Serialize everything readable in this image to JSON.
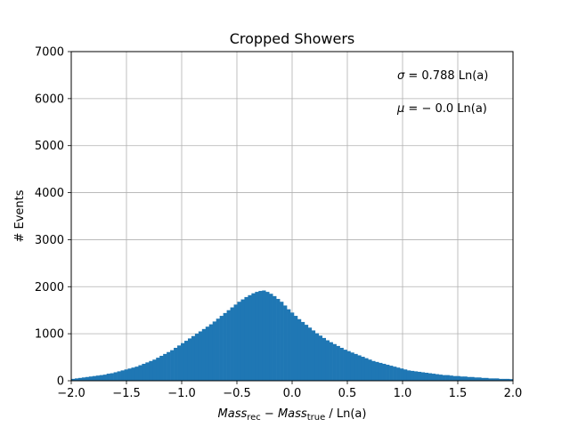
{
  "chart_data": {
    "type": "bar",
    "title": "Cropped Showers",
    "xlabel": "Mass_rec − Mass_true / Ln(a)",
    "xlabel_parts": {
      "a": "Mass",
      "a_sub": "rec",
      "op": " − ",
      "b": "Mass",
      "b_sub": "true",
      "unit": " / Ln(a)"
    },
    "ylabel": "# Events",
    "xlim": [
      -2.0,
      2.0
    ],
    "ylim": [
      0,
      7000
    ],
    "xticks": [
      "−2.0",
      "−1.5",
      "−1.0",
      "−0.5",
      "0.0",
      "0.5",
      "1.0",
      "1.5",
      "2.0"
    ],
    "xtick_values": [
      -2.0,
      -1.5,
      -1.0,
      -0.5,
      0.0,
      0.5,
      1.0,
      1.5,
      2.0
    ],
    "yticks": [
      "0",
      "1000",
      "2000",
      "3000",
      "4000",
      "5000",
      "6000",
      "7000"
    ],
    "ytick_values": [
      0,
      1000,
      2000,
      3000,
      4000,
      5000,
      6000,
      7000
    ],
    "grid": true,
    "color": "#1f77b4",
    "annotations": [
      {
        "sym": "σ",
        "text": " = 0.788 Ln(a)"
      },
      {
        "sym": "μ",
        "text": " = − 0.0 Ln(a)"
      }
    ],
    "bins": {
      "start": -2.0,
      "width": 0.032,
      "values": [
        40,
        50,
        60,
        70,
        80,
        90,
        100,
        110,
        120,
        130,
        150,
        160,
        180,
        200,
        220,
        240,
        260,
        280,
        300,
        330,
        360,
        390,
        420,
        450,
        490,
        530,
        570,
        610,
        650,
        700,
        750,
        800,
        850,
        900,
        950,
        1000,
        1050,
        1100,
        1150,
        1200,
        1260,
        1320,
        1380,
        1440,
        1500,
        1560,
        1620,
        1680,
        1730,
        1780,
        1820,
        1860,
        1890,
        1910,
        1920,
        1890,
        1850,
        1800,
        1740,
        1680,
        1600,
        1520,
        1450,
        1380,
        1310,
        1250,
        1190,
        1130,
        1070,
        1010,
        960,
        910,
        860,
        820,
        780,
        740,
        700,
        660,
        630,
        600,
        570,
        540,
        510,
        480,
        450,
        420,
        400,
        380,
        360,
        340,
        320,
        300,
        280,
        260,
        240,
        220,
        210,
        200,
        190,
        180,
        170,
        160,
        150,
        140,
        130,
        120,
        120,
        110,
        100,
        100,
        90,
        90,
        80,
        80,
        70,
        70,
        60,
        60,
        50,
        50,
        50,
        40,
        40,
        40,
        35,
        30,
        30
      ]
    }
  }
}
